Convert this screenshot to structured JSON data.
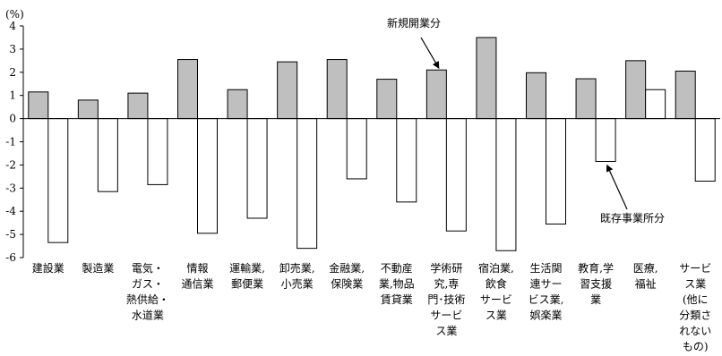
{
  "chart_data": {
    "type": "bar",
    "ylabel": "(%)",
    "ylim": [
      -6,
      4
    ],
    "yticks": [
      4,
      3,
      2,
      1,
      0,
      -1,
      -2,
      -3,
      -4,
      -5,
      -6
    ],
    "grid": false,
    "legend": "none",
    "categories": [
      [
        "建設業"
      ],
      [
        "製造業"
      ],
      [
        "電気・",
        "ガス・",
        "熱供給・",
        "水道業"
      ],
      [
        "情報",
        "通信業"
      ],
      [
        "運輸業,",
        "郵便業"
      ],
      [
        "卸売業,",
        "小売業"
      ],
      [
        "金融業,",
        "保険業"
      ],
      [
        "不動産",
        "業,物品",
        "賃貸業"
      ],
      [
        "学術研",
        "究,専",
        "門･技術",
        "サービ",
        "ス業"
      ],
      [
        "宿泊業,",
        "飲食",
        "サービ",
        "ス業"
      ],
      [
        "生活関",
        "連サー",
        "ビス業,",
        "娯楽業"
      ],
      [
        "教育,学",
        "習支援",
        "業"
      ],
      [
        "医療,",
        "福祉"
      ],
      [
        "サービ",
        "ス業",
        "(他に",
        "分類さ",
        "れない",
        "もの)"
      ]
    ],
    "series": [
      {
        "name": "新規開業分",
        "color": "#bfbfbf",
        "values": [
          1.15,
          0.8,
          1.1,
          2.55,
          1.25,
          2.45,
          2.55,
          1.7,
          2.1,
          3.5,
          1.98,
          1.72,
          2.5,
          2.05
        ]
      },
      {
        "name": "既存事業所分",
        "color": "#ffffff",
        "values": [
          -5.35,
          -3.15,
          -2.85,
          -4.95,
          -4.3,
          -5.6,
          -2.6,
          -3.6,
          -4.85,
          -5.7,
          -4.55,
          -1.85,
          1.25,
          -2.7
        ]
      }
    ],
    "annotations": [
      {
        "text": "新規開業分",
        "points_to_series": 0
      },
      {
        "text": "既存事業所分",
        "points_to_series": 1
      }
    ]
  }
}
